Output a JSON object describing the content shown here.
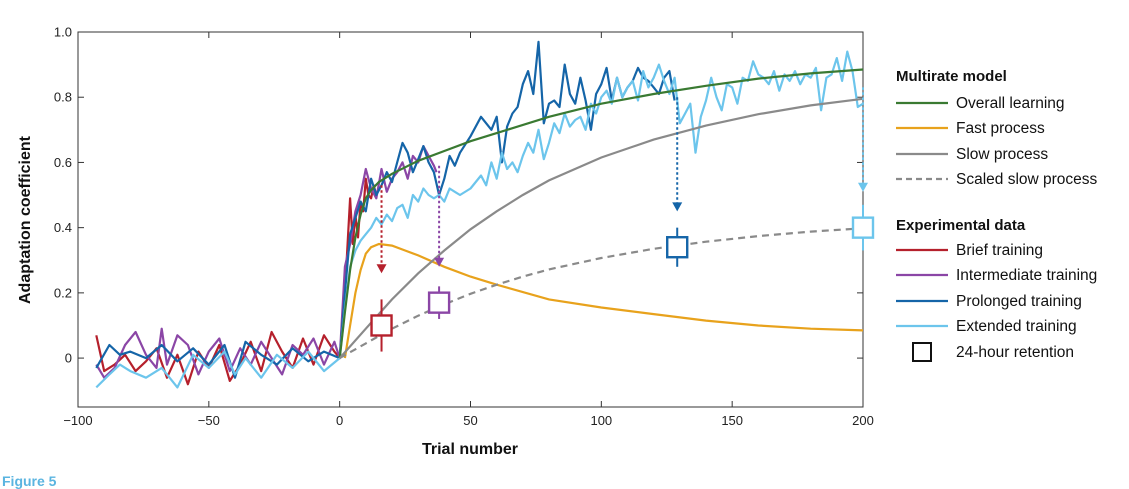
{
  "figure_label": "Figure 5",
  "chart_data": {
    "type": "line",
    "xlabel": "Trial number",
    "ylabel": "Adaptation coefficient",
    "xlim": [
      -100,
      200
    ],
    "ylim": [
      -0.15,
      1.0
    ],
    "x_ticks": [
      -100,
      -50,
      0,
      50,
      100,
      150,
      200
    ],
    "x_tick_labels": [
      "−100",
      "−50",
      "0",
      "50",
      "100",
      "150",
      "200"
    ],
    "y_ticks": [
      0,
      0.2,
      0.4,
      0.6,
      0.8,
      1.0
    ],
    "y_tick_labels": [
      "0",
      "0.2",
      "0.4",
      "0.6",
      "0.8",
      "1.0"
    ],
    "legend": {
      "model_heading": "Multirate model",
      "data_heading": "Experimental data",
      "placement": "right"
    },
    "colors": {
      "overall": "#3a7a32",
      "fast": "#e8a21c",
      "slow": "#8a8a8a",
      "brief": "#b5202c",
      "intermediate": "#8b46a6",
      "prolonged": "#1565a8",
      "extended": "#6cc5ec"
    },
    "model_series": [
      {
        "name": "Overall learning",
        "key": "overall",
        "x": [
          0,
          2,
          4,
          6,
          8,
          10,
          12,
          15,
          20,
          25,
          30,
          40,
          50,
          60,
          80,
          100,
          120,
          140,
          160,
          180,
          200
        ],
        "y": [
          0,
          0.14,
          0.27,
          0.37,
          0.44,
          0.49,
          0.515,
          0.54,
          0.565,
          0.585,
          0.605,
          0.635,
          0.665,
          0.69,
          0.74,
          0.78,
          0.81,
          0.835,
          0.857,
          0.873,
          0.885
        ]
      },
      {
        "name": "Fast process",
        "key": "fast",
        "x": [
          2,
          4,
          6,
          8,
          10,
          12,
          15,
          20,
          25,
          30,
          40,
          50,
          60,
          80,
          100,
          120,
          140,
          160,
          180,
          200
        ],
        "y": [
          0,
          0.1,
          0.2,
          0.27,
          0.32,
          0.34,
          0.35,
          0.345,
          0.33,
          0.315,
          0.28,
          0.25,
          0.225,
          0.18,
          0.155,
          0.135,
          0.115,
          0.1,
          0.09,
          0.085
        ]
      },
      {
        "name": "Slow process",
        "key": "slow",
        "x": [
          0,
          10,
          20,
          30,
          40,
          50,
          60,
          70,
          80,
          100,
          120,
          140,
          160,
          180,
          200
        ],
        "y": [
          0,
          0.09,
          0.18,
          0.26,
          0.33,
          0.395,
          0.45,
          0.5,
          0.545,
          0.615,
          0.67,
          0.713,
          0.748,
          0.775,
          0.795
        ]
      },
      {
        "name": "Scaled slow process",
        "key": "slow",
        "dashed": true,
        "x": [
          0,
          10,
          20,
          30,
          40,
          50,
          60,
          70,
          80,
          100,
          120,
          140,
          160,
          180,
          200
        ],
        "y": [
          0,
          0.045,
          0.09,
          0.13,
          0.165,
          0.197,
          0.225,
          0.25,
          0.272,
          0.307,
          0.335,
          0.357,
          0.374,
          0.388,
          0.398
        ]
      }
    ],
    "data_series": [
      {
        "name": "Brief training",
        "key": "brief",
        "x": [
          -93,
          -90,
          -86,
          -82,
          -78,
          -74,
          -70,
          -66,
          -62,
          -58,
          -54,
          -50,
          -46,
          -42,
          -38,
          -34,
          -30,
          -26,
          -22,
          -18,
          -14,
          -10,
          -6,
          -2,
          0,
          2,
          4,
          5,
          6,
          7,
          8,
          9,
          10,
          11,
          12,
          13,
          14,
          15
        ],
        "y": [
          0.07,
          -0.04,
          -0.02,
          0.01,
          -0.04,
          -0.01,
          0.03,
          -0.06,
          0.01,
          -0.08,
          0.02,
          -0.03,
          0.04,
          -0.07,
          -0.02,
          0.05,
          -0.04,
          0.08,
          0.02,
          -0.03,
          0.06,
          -0.02,
          0.07,
          0.02,
          0.0,
          0.2,
          0.49,
          0.35,
          0.44,
          0.37,
          0.48,
          0.45,
          0.55,
          0.5,
          0.49,
          0.53,
          0.5,
          0.52
        ]
      },
      {
        "name": "Intermediate training",
        "key": "intermediate",
        "x": [
          -93,
          -90,
          -86,
          -82,
          -78,
          -74,
          -70,
          -68,
          -66,
          -62,
          -58,
          -54,
          -50,
          -46,
          -42,
          -38,
          -34,
          -30,
          -26,
          -22,
          -18,
          -14,
          -10,
          -6,
          -2,
          0,
          2,
          4,
          6,
          8,
          10,
          12,
          14,
          16,
          18,
          20,
          22,
          24,
          26,
          28,
          30,
          32,
          34,
          36,
          37
        ],
        "y": [
          -0.02,
          -0.06,
          -0.03,
          0.04,
          0.08,
          0.01,
          -0.03,
          0.09,
          -0.02,
          0.07,
          0.04,
          -0.05,
          0.02,
          0.06,
          -0.04,
          0.03,
          -0.02,
          0.05,
          0.0,
          -0.05,
          0.04,
          0.01,
          0.06,
          -0.02,
          0.05,
          0.0,
          0.28,
          0.35,
          0.45,
          0.5,
          0.58,
          0.52,
          0.49,
          0.58,
          0.51,
          0.55,
          0.57,
          0.6,
          0.55,
          0.62,
          0.6,
          0.65,
          0.62,
          0.59,
          0.57
        ]
      },
      {
        "name": "Prolonged training",
        "key": "prolonged",
        "x": [
          -93,
          -88,
          -84,
          -80,
          -74,
          -68,
          -62,
          -56,
          -50,
          -44,
          -40,
          -36,
          -30,
          -24,
          -18,
          -12,
          -6,
          0,
          2,
          4,
          6,
          8,
          10,
          12,
          14,
          16,
          18,
          20,
          22,
          24,
          26,
          28,
          30,
          32,
          34,
          36,
          38,
          40,
          42,
          44,
          46,
          50,
          54,
          58,
          60,
          62,
          64,
          66,
          68,
          70,
          72,
          74,
          76,
          78,
          80,
          82,
          84,
          86,
          88,
          90,
          92,
          94,
          96,
          98,
          100,
          102,
          104,
          106,
          108,
          110,
          112,
          114,
          116,
          118,
          120,
          122,
          124,
          126,
          128
        ],
        "y": [
          -0.03,
          0.04,
          0.01,
          0.02,
          0.0,
          0.04,
          -0.01,
          0.03,
          -0.02,
          0.04,
          -0.06,
          0.05,
          0.01,
          -0.02,
          0.03,
          -0.01,
          0.02,
          0.0,
          0.2,
          0.38,
          0.43,
          0.48,
          0.45,
          0.55,
          0.5,
          0.53,
          0.57,
          0.54,
          0.6,
          0.66,
          0.63,
          0.57,
          0.61,
          0.65,
          0.6,
          0.57,
          0.5,
          0.55,
          0.62,
          0.59,
          0.63,
          0.68,
          0.74,
          0.7,
          0.74,
          0.6,
          0.71,
          0.75,
          0.77,
          0.84,
          0.88,
          0.81,
          0.97,
          0.72,
          0.78,
          0.79,
          0.77,
          0.9,
          0.81,
          0.78,
          0.86,
          0.79,
          0.7,
          0.81,
          0.84,
          0.89,
          0.79,
          0.86,
          0.8,
          0.83,
          0.85,
          0.89,
          0.86,
          0.85,
          0.83,
          0.81,
          0.86,
          0.88,
          0.79
        ]
      },
      {
        "name": "Extended training",
        "key": "extended",
        "x": [
          -93,
          -88,
          -84,
          -80,
          -74,
          -68,
          -62,
          -56,
          -50,
          -44,
          -40,
          -36,
          -30,
          -24,
          -18,
          -12,
          -6,
          0,
          2,
          4,
          6,
          8,
          10,
          12,
          14,
          16,
          18,
          20,
          22,
          24,
          26,
          28,
          30,
          32,
          34,
          36,
          38,
          40,
          42,
          44,
          46,
          50,
          54,
          56,
          58,
          60,
          62,
          64,
          66,
          68,
          70,
          72,
          74,
          76,
          78,
          80,
          82,
          84,
          86,
          88,
          90,
          92,
          94,
          96,
          98,
          100,
          102,
          104,
          106,
          108,
          110,
          112,
          114,
          116,
          118,
          120,
          122,
          124,
          126,
          128,
          130,
          132,
          134,
          136,
          138,
          140,
          142,
          144,
          146,
          148,
          150,
          152,
          154,
          156,
          158,
          160,
          162,
          164,
          166,
          168,
          170,
          172,
          174,
          176,
          178,
          180,
          182,
          184,
          186,
          188,
          190,
          192,
          194,
          196,
          198,
          200
        ],
        "y": [
          -0.09,
          -0.05,
          -0.02,
          -0.04,
          -0.06,
          -0.03,
          -0.09,
          0.01,
          -0.03,
          0.02,
          -0.05,
          0.0,
          -0.06,
          0.01,
          -0.03,
          0.02,
          -0.04,
          0.0,
          0.15,
          0.28,
          0.33,
          0.36,
          0.38,
          0.4,
          0.43,
          0.41,
          0.44,
          0.42,
          0.46,
          0.47,
          0.43,
          0.5,
          0.48,
          0.52,
          0.5,
          0.49,
          0.5,
          0.48,
          0.52,
          0.51,
          0.5,
          0.52,
          0.56,
          0.53,
          0.6,
          0.55,
          0.63,
          0.58,
          0.6,
          0.57,
          0.62,
          0.66,
          0.63,
          0.7,
          0.61,
          0.66,
          0.72,
          0.69,
          0.75,
          0.71,
          0.73,
          0.74,
          0.7,
          0.78,
          0.75,
          0.8,
          0.82,
          0.78,
          0.86,
          0.8,
          0.83,
          0.85,
          0.79,
          0.88,
          0.83,
          0.86,
          0.9,
          0.85,
          0.81,
          0.86,
          0.72,
          0.75,
          0.78,
          0.63,
          0.74,
          0.79,
          0.86,
          0.8,
          0.76,
          0.84,
          0.83,
          0.78,
          0.86,
          0.85,
          0.91,
          0.87,
          0.86,
          0.84,
          0.88,
          0.82,
          0.87,
          0.85,
          0.88,
          0.84,
          0.87,
          0.86,
          0.89,
          0.76,
          0.86,
          0.87,
          0.92,
          0.85,
          0.94,
          0.88,
          0.77,
          0.78
        ]
      }
    ],
    "retention": [
      {
        "key": "brief",
        "x": 16,
        "y": 0.1,
        "err": 0.08,
        "arrow_from": 0.53,
        "arrow_to": 0.26
      },
      {
        "key": "intermediate",
        "x": 38,
        "y": 0.17,
        "err": 0.05,
        "arrow_from": 0.59,
        "arrow_to": 0.28
      },
      {
        "key": "prolonged",
        "x": 129,
        "y": 0.34,
        "err": 0.06,
        "arrow_from": 0.8,
        "arrow_to": 0.45
      },
      {
        "key": "extended",
        "x": 200,
        "y": 0.4,
        "err": 0.07,
        "arrow_from": 0.83,
        "arrow_to": 0.51
      }
    ],
    "legend_entries": [
      {
        "label": "Overall learning",
        "key": "overall",
        "style": "solid"
      },
      {
        "label": "Fast process",
        "key": "fast",
        "style": "solid"
      },
      {
        "label": "Slow process",
        "key": "slow",
        "style": "solid"
      },
      {
        "label": "Scaled slow process",
        "key": "slow",
        "style": "dashed"
      },
      {
        "label": "Brief training",
        "key": "brief",
        "style": "solid"
      },
      {
        "label": "Intermediate training",
        "key": "intermediate",
        "style": "solid"
      },
      {
        "label": "Prolonged training",
        "key": "prolonged",
        "style": "solid"
      },
      {
        "label": "Extended training",
        "key": "extended",
        "style": "solid"
      },
      {
        "label": "24-hour retention",
        "key": "retention",
        "style": "square"
      }
    ]
  }
}
